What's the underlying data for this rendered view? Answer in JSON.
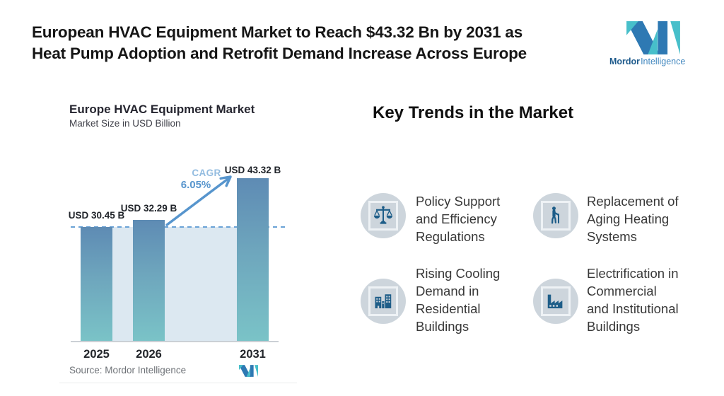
{
  "header": {
    "title_line1": "European HVAC Equipment Market to Reach $43.32 Bn by 2031 as",
    "title_line2": "Heat Pump Adoption and Retrofit Demand Increase Across Europe",
    "brand": {
      "bold": "Mordor",
      "light": "Intelligence"
    }
  },
  "chart": {
    "title": "Europe HVAC Equipment Market",
    "subtitle": "Market Size in USD Billion",
    "cagr_label": "CAGR",
    "cagr_value": "6.05%",
    "source": "Source: Mordor Intelligence"
  },
  "chart_data": {
    "type": "bar",
    "title": "Europe HVAC Equipment Market",
    "subtitle": "Market Size in USD Billion",
    "categories": [
      "2025",
      "2026",
      "2031"
    ],
    "values": [
      30.45,
      32.29,
      43.32
    ],
    "labels": [
      "USD 30.45 B",
      "USD 32.29 B",
      "USD 43.32 B"
    ],
    "cagr": "6.05%",
    "ylabel": "Market Size in USD Billion",
    "ylim": [
      0,
      46
    ],
    "grid": false,
    "reference_line_at": 30.45,
    "annotations": [
      "CAGR 6.05% arrow from 2026 to 2031"
    ]
  },
  "trends": {
    "heading": "Key Trends in the Market",
    "items": [
      {
        "icon": "balance-scale-icon",
        "lines": [
          "Policy Support",
          "and Efficiency",
          "Regulations"
        ]
      },
      {
        "icon": "elderly-person-icon",
        "lines": [
          "Replacement of",
          "Aging Heating",
          "Systems"
        ]
      },
      {
        "icon": "buildings-icon",
        "lines": [
          "Rising Cooling",
          "Demand in",
          "Residential",
          "Buildings"
        ]
      },
      {
        "icon": "factory-icon",
        "lines": [
          "Electrification in",
          "Commercial",
          "and Institutional",
          "Buildings"
        ]
      }
    ]
  },
  "colors": {
    "bar_gradient_top": "#5e8bb4",
    "bar_gradient_bottom": "#7ac3c7",
    "band": "#dce8f1",
    "dashed_reference": "#6aa2d6",
    "arrow_blue": "#5795cd",
    "icon_blue": "#1d5d88",
    "icon_circle_bg": "#cdd5dc",
    "logo_dark_blue": "#2e79b3",
    "logo_teal": "#47bfca"
  }
}
